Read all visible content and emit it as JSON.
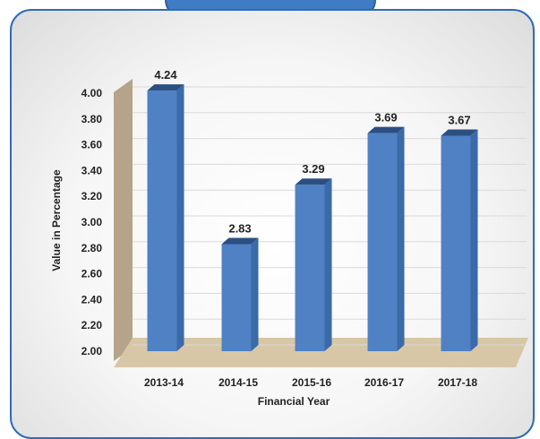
{
  "chart_data": {
    "type": "bar",
    "title": "",
    "xlabel": "Financial Year",
    "ylabel": "Value in Percentage",
    "categories": [
      "2013-14",
      "2014-15",
      "2015-16",
      "2016-17",
      "2017-18"
    ],
    "values": [
      4.24,
      2.83,
      3.29,
      3.69,
      3.67
    ],
    "value_labels": [
      "4.24",
      "2.83",
      "3.29",
      "3.69",
      "3.67"
    ],
    "ylim": [
      2.0,
      4.0
    ],
    "yticks": [
      "2.00",
      "2.20",
      "2.40",
      "2.60",
      "2.80",
      "3.00",
      "3.20",
      "3.40",
      "3.60",
      "3.80",
      "4.00"
    ],
    "grid": true,
    "style": "3d",
    "colors": {
      "bar_front": "#4f81c4",
      "bar_side": "#3a6aa8",
      "bar_top": "#2c4f82",
      "wall": "#b5a489",
      "floor": "#d8c7a6",
      "border": "#2f6cb3"
    }
  }
}
